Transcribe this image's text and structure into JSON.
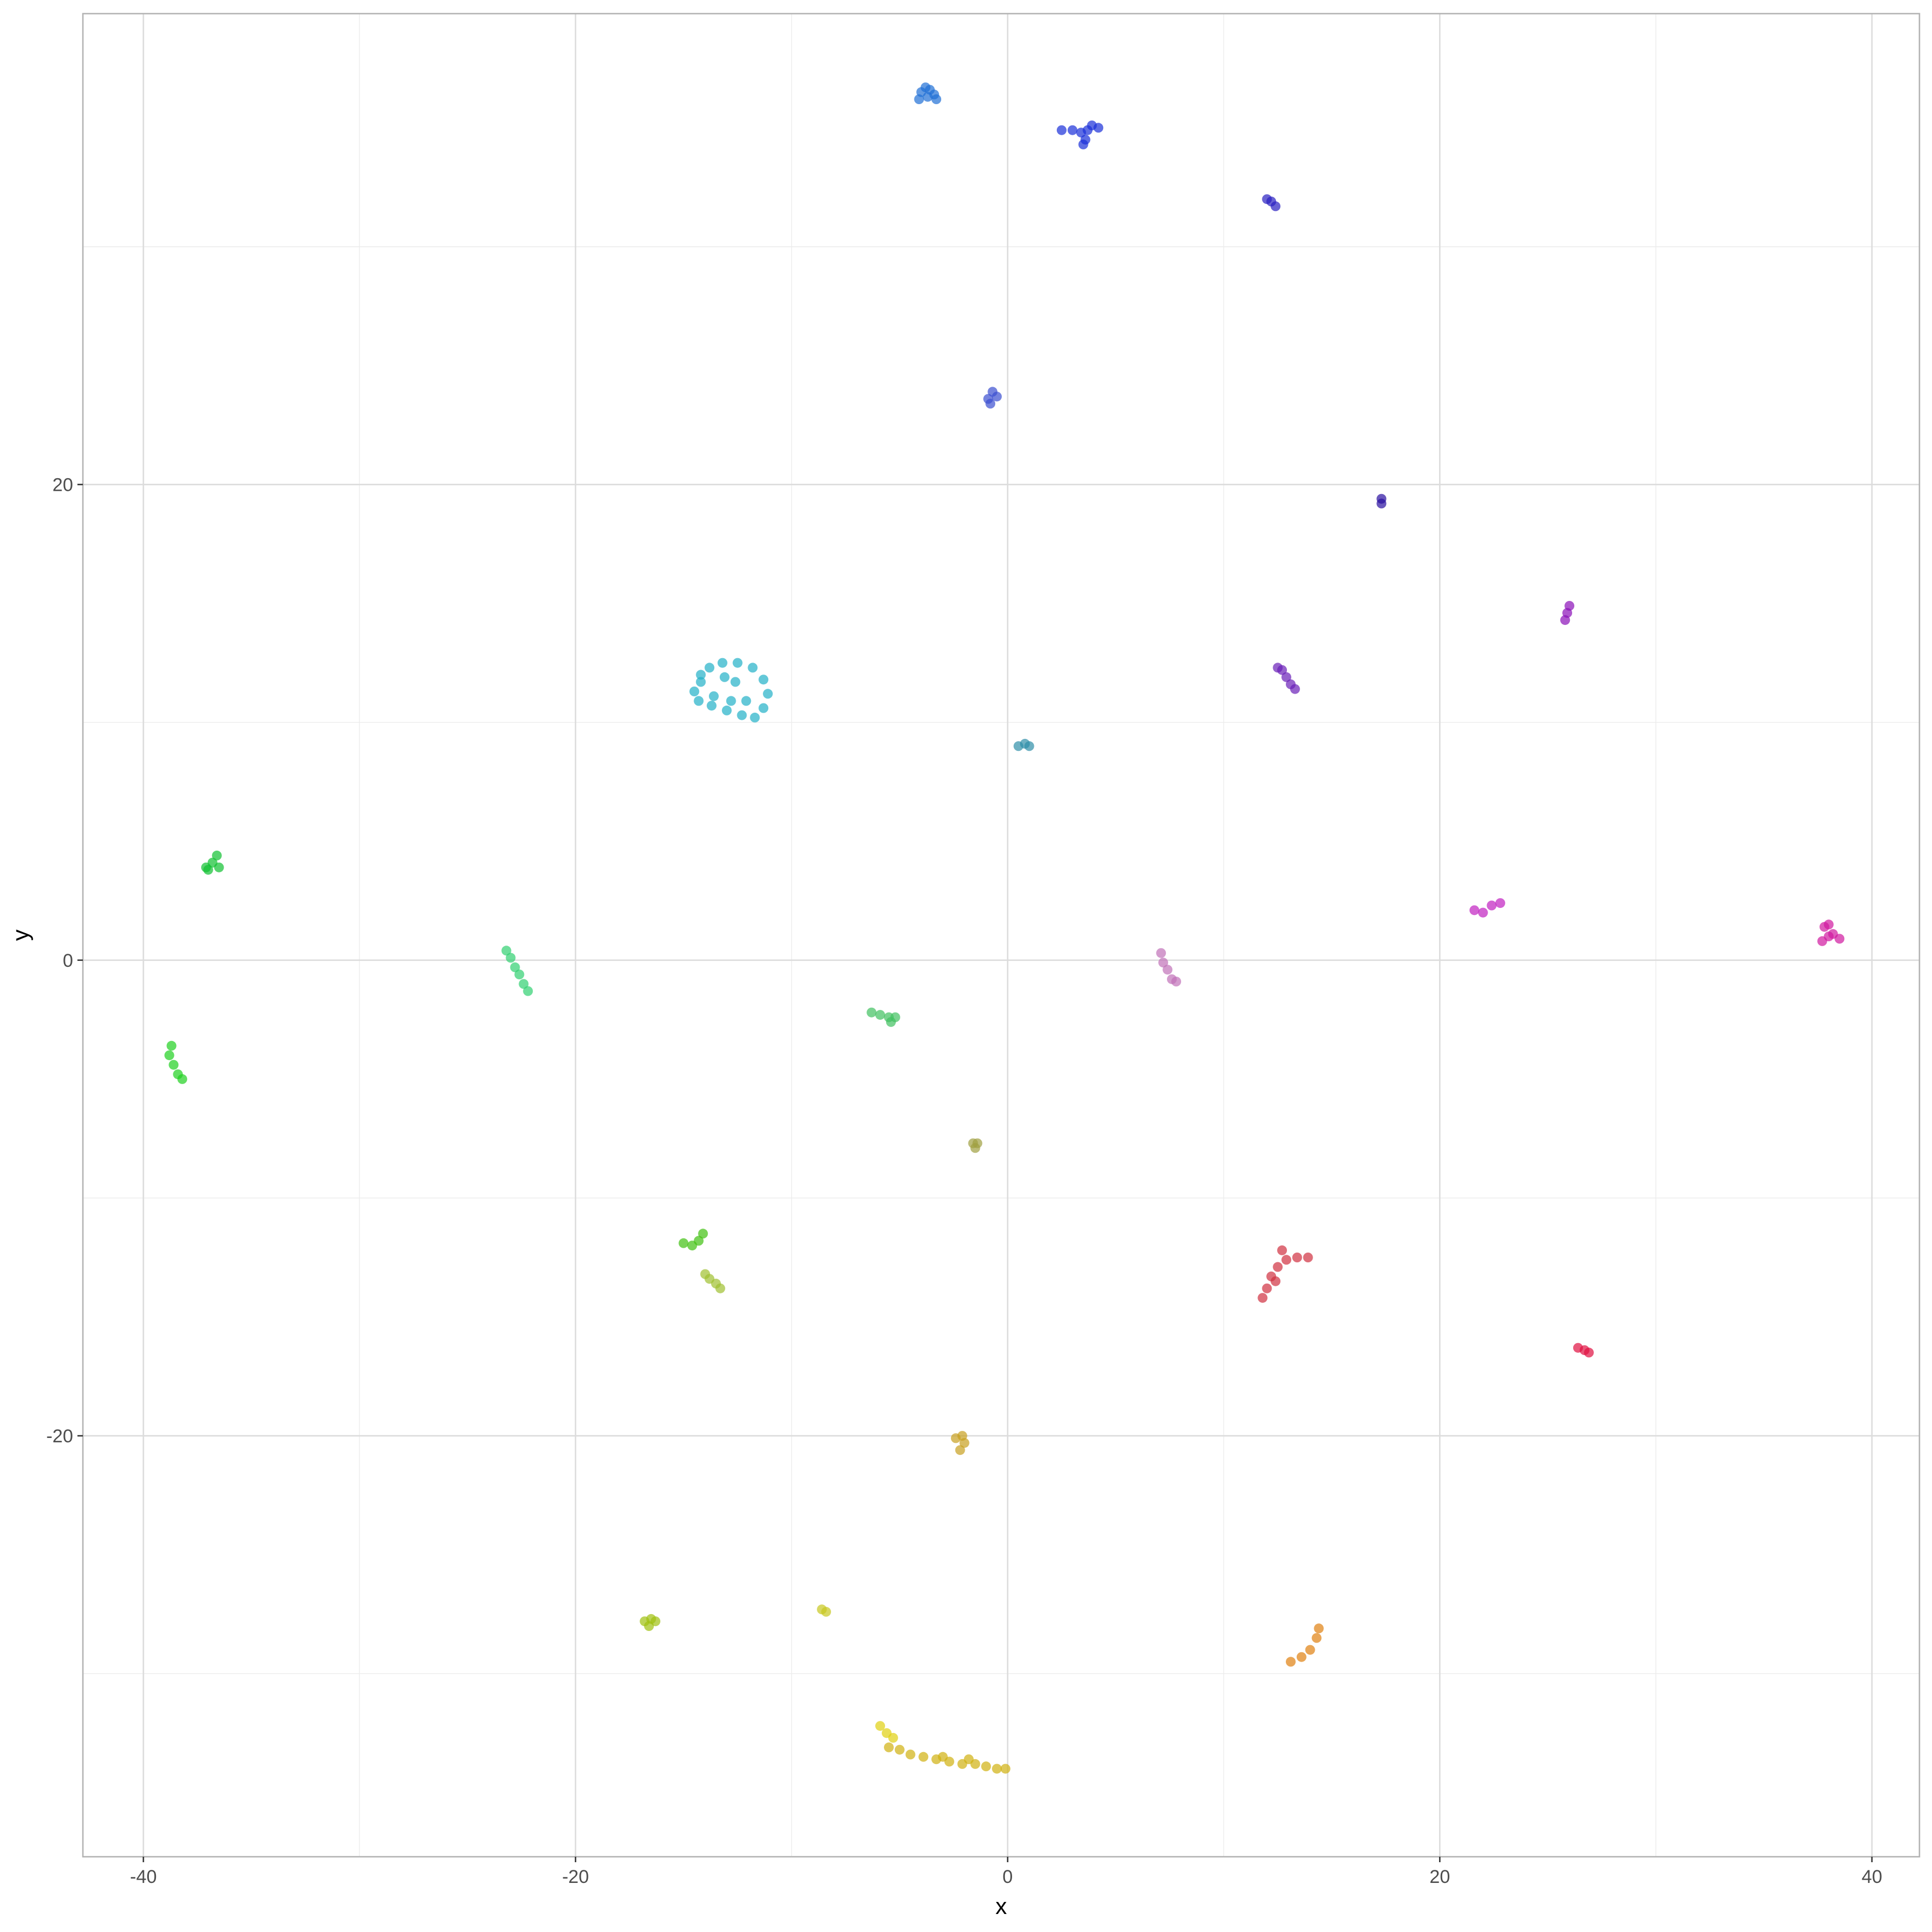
{
  "chart_data": {
    "type": "scatter",
    "title": "",
    "xlabel": "x",
    "ylabel": "y",
    "xlim": [
      -42.8,
      42.2
    ],
    "ylim": [
      -37.7,
      39.8
    ],
    "xticks": [
      -40,
      -20,
      0,
      20,
      40
    ],
    "yticks": [
      -20,
      0,
      20
    ],
    "xtick_labels": [
      "-40",
      "-20",
      "0",
      "20",
      "40"
    ],
    "ytick_labels": [
      "-20",
      "0",
      "20"
    ],
    "grid": true,
    "legend": "none",
    "point_opacity": 0.7,
    "clusters": [
      {
        "color": "#1f6fd6",
        "points": [
          [
            -4.0,
            36.5
          ],
          [
            -3.8,
            36.7
          ],
          [
            -3.6,
            36.6
          ],
          [
            -3.4,
            36.4
          ],
          [
            -3.3,
            36.2
          ],
          [
            -4.1,
            36.2
          ],
          [
            -3.7,
            36.3
          ]
        ]
      },
      {
        "color": "#1a2fd8",
        "points": [
          [
            2.5,
            34.9
          ],
          [
            3.0,
            34.9
          ],
          [
            3.4,
            34.8
          ],
          [
            3.7,
            34.9
          ],
          [
            3.9,
            35.1
          ],
          [
            4.2,
            35.0
          ],
          [
            3.6,
            34.5
          ],
          [
            3.5,
            34.3
          ]
        ]
      },
      {
        "color": "#2a1fc0",
        "points": [
          [
            12.0,
            32.0
          ],
          [
            12.2,
            31.9
          ],
          [
            12.4,
            31.7
          ]
        ]
      },
      {
        "color": "#3a4fd0",
        "points": [
          [
            -0.9,
            23.6
          ],
          [
            -0.7,
            23.9
          ],
          [
            -0.5,
            23.7
          ],
          [
            -0.8,
            23.4
          ]
        ]
      },
      {
        "color": "#2a10a0",
        "points": [
          [
            17.3,
            19.4
          ],
          [
            17.3,
            19.2
          ]
        ]
      },
      {
        "color": "#8a10b8",
        "points": [
          [
            26.0,
            14.9
          ],
          [
            25.9,
            14.6
          ],
          [
            25.8,
            14.3
          ]
        ]
      },
      {
        "color": "#6a20b8",
        "points": [
          [
            12.5,
            12.3
          ],
          [
            12.7,
            12.2
          ],
          [
            12.9,
            11.9
          ],
          [
            13.1,
            11.6
          ],
          [
            13.3,
            11.4
          ]
        ]
      },
      {
        "color": "#22b0c8",
        "points": [
          [
            -14.2,
            12.0
          ],
          [
            -13.8,
            12.3
          ],
          [
            -13.2,
            12.5
          ],
          [
            -12.5,
            12.5
          ],
          [
            -11.8,
            12.3
          ],
          [
            -11.3,
            11.8
          ],
          [
            -11.1,
            11.2
          ],
          [
            -11.3,
            10.6
          ],
          [
            -11.7,
            10.2
          ],
          [
            -12.3,
            10.3
          ],
          [
            -13.0,
            10.5
          ],
          [
            -13.7,
            10.7
          ],
          [
            -14.3,
            10.9
          ],
          [
            -14.5,
            11.3
          ],
          [
            -14.2,
            11.7
          ],
          [
            -13.6,
            11.1
          ],
          [
            -12.8,
            10.9
          ],
          [
            -12.1,
            10.9
          ],
          [
            -13.1,
            11.9
          ],
          [
            -12.6,
            11.7
          ]
        ]
      },
      {
        "color": "#2f8fa8",
        "points": [
          [
            0.5,
            9.0
          ],
          [
            0.8,
            9.1
          ],
          [
            1.0,
            9.0
          ]
        ]
      },
      {
        "color": "#10c030",
        "points": [
          [
            -37.1,
            3.9
          ],
          [
            -36.8,
            4.1
          ],
          [
            -36.6,
            4.4
          ],
          [
            -36.5,
            3.9
          ],
          [
            -37.0,
            3.8
          ]
        ]
      },
      {
        "color": "#c020c0",
        "points": [
          [
            21.6,
            2.1
          ],
          [
            22.0,
            2.0
          ],
          [
            22.4,
            2.3
          ],
          [
            22.8,
            2.4
          ]
        ]
      },
      {
        "color": "#d018a0",
        "points": [
          [
            37.8,
            1.4
          ],
          [
            38.0,
            1.5
          ],
          [
            38.2,
            1.1
          ],
          [
            38.5,
            0.9
          ],
          [
            37.7,
            0.8
          ],
          [
            38.0,
            1.0
          ]
        ]
      },
      {
        "color": "#30d070",
        "points": [
          [
            -23.2,
            0.4
          ],
          [
            -23.0,
            0.1
          ],
          [
            -22.8,
            -0.3
          ],
          [
            -22.6,
            -0.6
          ],
          [
            -22.4,
            -1.0
          ],
          [
            -22.2,
            -1.3
          ]
        ]
      },
      {
        "color": "#c070b8",
        "points": [
          [
            7.1,
            0.3
          ],
          [
            7.2,
            -0.1
          ],
          [
            7.4,
            -0.4
          ],
          [
            7.6,
            -0.8
          ],
          [
            7.8,
            -0.9
          ]
        ]
      },
      {
        "color": "#40c060",
        "points": [
          [
            -6.3,
            -2.2
          ],
          [
            -5.9,
            -2.3
          ],
          [
            -5.5,
            -2.4
          ],
          [
            -5.2,
            -2.4
          ],
          [
            -5.4,
            -2.6
          ]
        ]
      },
      {
        "color": "#20d020",
        "points": [
          [
            -38.7,
            -3.6
          ],
          [
            -38.8,
            -4.0
          ],
          [
            -38.6,
            -4.4
          ],
          [
            -38.4,
            -4.8
          ],
          [
            -38.2,
            -5.0
          ]
        ]
      },
      {
        "color": "#a0a040",
        "points": [
          [
            -1.6,
            -7.7
          ],
          [
            -1.4,
            -7.7
          ],
          [
            -1.5,
            -7.9
          ]
        ]
      },
      {
        "color": "#40c010",
        "points": [
          [
            -15.0,
            -11.9
          ],
          [
            -14.6,
            -12.0
          ],
          [
            -14.3,
            -11.8
          ],
          [
            -14.1,
            -11.5
          ]
        ]
      },
      {
        "color": "#a0c030",
        "points": [
          [
            -14.0,
            -13.2
          ],
          [
            -13.8,
            -13.4
          ],
          [
            -13.5,
            -13.6
          ],
          [
            -13.3,
            -13.8
          ]
        ]
      },
      {
        "color": "#d03040",
        "points": [
          [
            11.8,
            -14.2
          ],
          [
            12.0,
            -13.8
          ],
          [
            12.2,
            -13.3
          ],
          [
            12.5,
            -12.9
          ],
          [
            12.9,
            -12.6
          ],
          [
            13.4,
            -12.5
          ],
          [
            13.9,
            -12.5
          ],
          [
            12.7,
            -12.2
          ],
          [
            12.4,
            -13.5
          ]
        ]
      },
      {
        "color": "#e01040",
        "points": [
          [
            26.4,
            -16.3
          ],
          [
            26.7,
            -16.4
          ],
          [
            26.9,
            -16.5
          ]
        ]
      },
      {
        "color": "#c8a020",
        "points": [
          [
            -2.4,
            -20.1
          ],
          [
            -2.1,
            -20.0
          ],
          [
            -2.0,
            -20.3
          ],
          [
            -2.2,
            -20.6
          ]
        ]
      },
      {
        "color": "#a0c010",
        "points": [
          [
            -16.8,
            -27.8
          ],
          [
            -16.5,
            -27.7
          ],
          [
            -16.3,
            -27.8
          ],
          [
            -16.6,
            -28.0
          ]
        ]
      },
      {
        "color": "#c8c820",
        "points": [
          [
            -8.6,
            -27.3
          ],
          [
            -8.4,
            -27.4
          ]
        ]
      },
      {
        "color": "#e08010",
        "points": [
          [
            13.1,
            -29.5
          ],
          [
            13.6,
            -29.3
          ],
          [
            14.0,
            -29.0
          ],
          [
            14.3,
            -28.5
          ],
          [
            14.4,
            -28.1
          ]
        ]
      },
      {
        "color": "#e0d010",
        "points": [
          [
            -5.9,
            -32.2
          ],
          [
            -5.6,
            -32.5
          ],
          [
            -5.3,
            -32.7
          ]
        ]
      },
      {
        "color": "#d0b010",
        "points": [
          [
            -5.5,
            -33.1
          ],
          [
            -5.0,
            -33.2
          ],
          [
            -4.5,
            -33.4
          ],
          [
            -3.9,
            -33.5
          ],
          [
            -3.3,
            -33.6
          ],
          [
            -2.7,
            -33.7
          ],
          [
            -2.1,
            -33.8
          ],
          [
            -1.5,
            -33.8
          ],
          [
            -1.0,
            -33.9
          ],
          [
            -0.5,
            -34.0
          ],
          [
            -0.1,
            -34.0
          ],
          [
            -3.0,
            -33.5
          ],
          [
            -1.8,
            -33.6
          ]
        ]
      }
    ]
  }
}
